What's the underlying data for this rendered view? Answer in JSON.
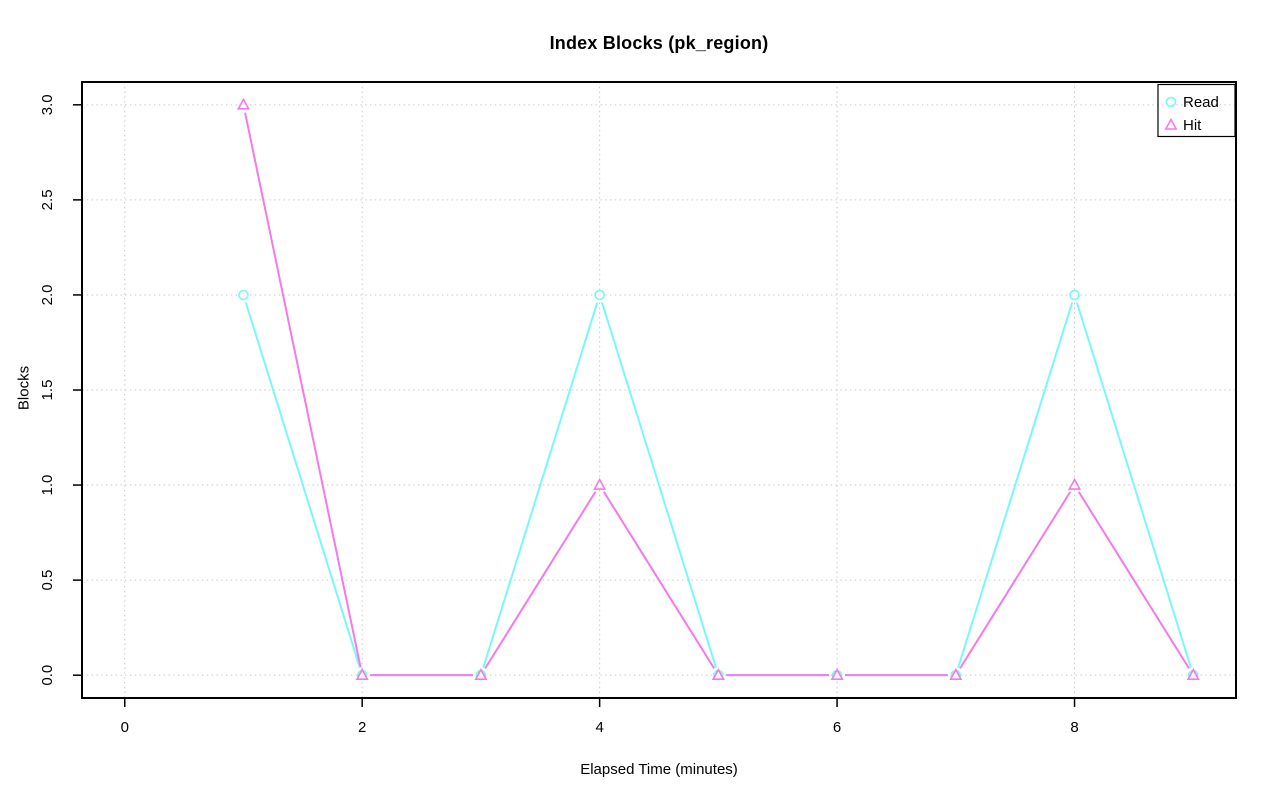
{
  "window": {
    "background": "#FFFFFF"
  },
  "chart_data": {
    "type": "line",
    "title": "Index Blocks (pk_region)",
    "xlabel": "Elapsed Time (minutes)",
    "ylabel": "Blocks",
    "x": [
      1,
      2,
      3,
      4,
      5,
      6,
      7,
      8,
      9
    ],
    "series": [
      {
        "name": "Read",
        "marker": "circle",
        "color": "#78F8F8",
        "values": [
          2,
          0,
          0,
          2,
          0,
          0,
          0,
          2,
          0
        ]
      },
      {
        "name": "Hit",
        "marker": "triangle",
        "color": "#F679E9",
        "values": [
          3,
          0,
          0,
          1,
          0,
          0,
          0,
          1,
          0
        ]
      }
    ],
    "xticks": [
      0,
      2,
      4,
      6,
      8
    ],
    "xtick_labels": [
      "0",
      "2",
      "4",
      "6",
      "8"
    ],
    "yticks": [
      0,
      0.5,
      1,
      1.5,
      2,
      2.5,
      3
    ],
    "ytick_labels": [
      "0.0",
      "0.5",
      "1.0",
      "1.5",
      "2.0",
      "2.5",
      "3.0"
    ],
    "xlim": [
      -0.36,
      9.36
    ],
    "ylim": [
      -0.12,
      3.12
    ],
    "grid": true,
    "grid_style": "dotted",
    "grid_color": "#C6C6C6",
    "axis_color": "#000000",
    "text_color": "#000000",
    "legend": {
      "position": "top-right",
      "entries": [
        "Read",
        "Hit"
      ]
    }
  }
}
